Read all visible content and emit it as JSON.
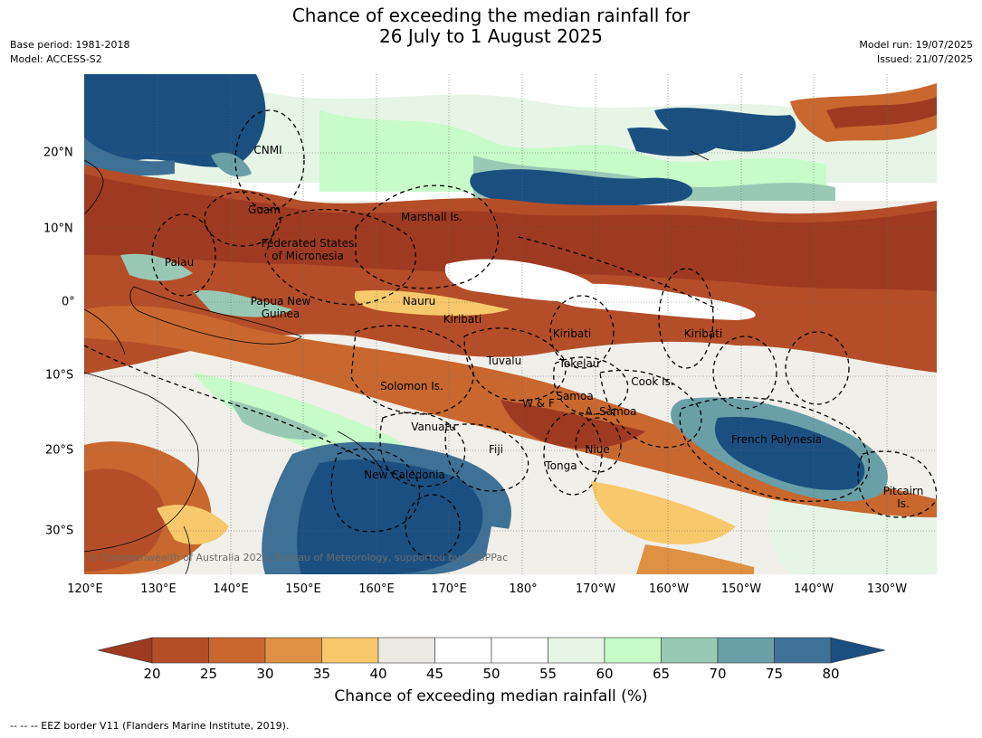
{
  "title_line1": "Chance of exceeding the median rainfall for",
  "title_line2": "26 July to 1 August 2025",
  "base_period": "Base period: 1981-2018",
  "model": "Model: ACCESS-S2",
  "model_run": "Model run: 19/07/2025",
  "issued": "Issued: 21/07/2025",
  "lon_ticks": [
    "120°E",
    "130°E",
    "140°E",
    "150°E",
    "160°E",
    "170°E",
    "180°",
    "170°W",
    "160°W",
    "150°W",
    "140°W",
    "130°W"
  ],
  "lat_ticks": [
    "20°N",
    "10°N",
    "0°",
    "10°S",
    "20°S",
    "30°S"
  ],
  "regions": [
    "CNMI",
    "Guam",
    "Marshall Is.",
    "Federated States",
    "of Micronesia",
    "Palau",
    "Papua New",
    "Guinea",
    "Nauru",
    "Kiribati",
    "Kiribati",
    "Kiribati",
    "Tuvalu",
    "Tokelau",
    "Solomon Is.",
    "W & F",
    "Samoa",
    "A. Samoa",
    "Cook Is.",
    "Vanuatu",
    "Fiji",
    "Niue",
    "Tonga",
    "French Polynesia",
    "New Caledonia",
    "Pitcairn",
    "Is."
  ],
  "copyright": "© Commonwealth of Australia 2025, Bureau of Meteorology, supported by COSPPac",
  "colorbar": {
    "ticks": [
      "20",
      "25",
      "30",
      "35",
      "40",
      "45",
      "50",
      "55",
      "60",
      "65",
      "70",
      "75",
      "80"
    ],
    "colors": [
      "#9e3a21",
      "#b44e28",
      "#c8682f",
      "#df9143",
      "#f7c96c",
      "#ece9e4",
      "#ffffff",
      "#ffffff",
      "#e6f5e6",
      "#c7fbc8",
      "#99c9b4",
      "#6a9fa8",
      "#3f7095",
      "#1b4f80"
    ],
    "label": "Chance of exceeding median rainfall (%)"
  },
  "footnote": "--  --  -- EEZ border V11 (Flanders Marine Institute, 2019)."
}
